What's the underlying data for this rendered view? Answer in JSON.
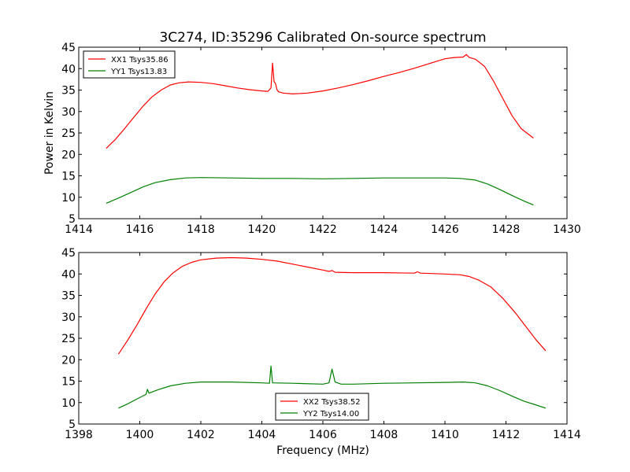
{
  "figure": {
    "title": "3C274, ID:35296 Calibrated On-source spectrum",
    "ylabel": "Power in Kelvin",
    "xlabel": "Frequency (MHz)"
  },
  "chart_data": [
    {
      "type": "line",
      "title": "3C274, ID:35296 Calibrated On-source spectrum",
      "ylabel": "Power in Kelvin",
      "xlabel": "",
      "xlim": [
        1414,
        1430
      ],
      "ylim": [
        5,
        45
      ],
      "xticks": [
        "1414",
        "1416",
        "1418",
        "1420",
        "1422",
        "1424",
        "1426",
        "1428",
        "1430"
      ],
      "yticks": [
        "5",
        "10",
        "15",
        "20",
        "25",
        "30",
        "35",
        "40",
        "45"
      ],
      "legend_position": "upper-left",
      "series": [
        {
          "name": "XX1 Tsys35.86",
          "color": "#ff0000",
          "x": [
            1414.9,
            1415.2,
            1415.5,
            1415.8,
            1416.1,
            1416.4,
            1416.7,
            1417.0,
            1417.3,
            1417.6,
            1418.0,
            1418.4,
            1418.8,
            1419.2,
            1419.6,
            1420.0,
            1420.2,
            1420.3,
            1420.35,
            1420.4,
            1420.45,
            1420.5,
            1420.55,
            1420.7,
            1421.0,
            1421.5,
            1422.0,
            1422.5,
            1423.0,
            1423.5,
            1424.0,
            1424.5,
            1425.0,
            1425.5,
            1426.0,
            1426.3,
            1426.6,
            1426.7,
            1426.8,
            1427.0,
            1427.3,
            1427.6,
            1427.9,
            1428.2,
            1428.5,
            1428.9
          ],
          "y": [
            21.4,
            23.5,
            26.0,
            28.6,
            31.2,
            33.4,
            35.0,
            36.2,
            36.7,
            36.9,
            36.8,
            36.5,
            36.0,
            35.5,
            35.1,
            34.8,
            34.7,
            35.5,
            41.3,
            37.0,
            36.5,
            35.0,
            34.6,
            34.3,
            34.1,
            34.3,
            34.8,
            35.5,
            36.3,
            37.2,
            38.2,
            39.1,
            40.1,
            41.2,
            42.3,
            42.6,
            42.7,
            43.3,
            42.6,
            42.2,
            40.5,
            37.0,
            33.0,
            29.0,
            26.0,
            23.8
          ]
        },
        {
          "name": "YY1 Tsys13.83",
          "color": "#008000",
          "x": [
            1414.9,
            1415.3,
            1415.7,
            1416.1,
            1416.5,
            1417.0,
            1417.5,
            1418.0,
            1419.0,
            1420.0,
            1421.0,
            1422.0,
            1423.0,
            1424.0,
            1425.0,
            1426.0,
            1426.5,
            1427.0,
            1427.4,
            1427.8,
            1428.2,
            1428.6,
            1428.9
          ],
          "y": [
            8.6,
            9.8,
            11.1,
            12.4,
            13.4,
            14.1,
            14.5,
            14.6,
            14.5,
            14.4,
            14.4,
            14.3,
            14.4,
            14.5,
            14.5,
            14.5,
            14.4,
            14.0,
            13.1,
            11.8,
            10.4,
            9.1,
            8.2
          ]
        }
      ]
    },
    {
      "type": "line",
      "title": "",
      "ylabel": "",
      "xlabel": "Frequency (MHz)",
      "xlim": [
        1398,
        1414
      ],
      "ylim": [
        5,
        45
      ],
      "xticks": [
        "1398",
        "1400",
        "1402",
        "1404",
        "1406",
        "1408",
        "1410",
        "1412",
        "1414"
      ],
      "yticks": [
        "5",
        "10",
        "15",
        "20",
        "25",
        "30",
        "35",
        "40",
        "45"
      ],
      "legend_position": "lower-center",
      "series": [
        {
          "name": "XX2 Tsys38.52",
          "color": "#ff0000",
          "x": [
            1399.3,
            1399.6,
            1399.9,
            1400.2,
            1400.5,
            1400.8,
            1401.1,
            1401.4,
            1401.7,
            1402.0,
            1402.5,
            1403.0,
            1403.5,
            1404.0,
            1404.5,
            1405.0,
            1405.5,
            1406.0,
            1406.2,
            1406.3,
            1406.4,
            1407.0,
            1408.0,
            1409.0,
            1409.1,
            1409.2,
            1410.0,
            1410.5,
            1410.8,
            1411.1,
            1411.5,
            1411.9,
            1412.3,
            1412.7,
            1413.0,
            1413.3
          ],
          "y": [
            21.3,
            24.5,
            28.0,
            31.8,
            35.3,
            38.2,
            40.3,
            41.8,
            42.7,
            43.3,
            43.7,
            43.8,
            43.7,
            43.4,
            43.0,
            42.3,
            41.6,
            40.9,
            40.6,
            40.8,
            40.4,
            40.3,
            40.3,
            40.2,
            40.5,
            40.2,
            40.0,
            39.8,
            39.4,
            38.6,
            37.0,
            34.3,
            31.0,
            27.3,
            24.5,
            22.1
          ]
        },
        {
          "name": "YY2 Tsys14.00",
          "color": "#008000",
          "x": [
            1399.3,
            1399.6,
            1399.9,
            1400.2,
            1400.25,
            1400.3,
            1400.6,
            1401.0,
            1401.5,
            1402.0,
            1403.0,
            1404.0,
            1404.25,
            1404.3,
            1404.35,
            1405.0,
            1406.0,
            1406.2,
            1406.3,
            1406.4,
            1406.6,
            1407.0,
            1408.0,
            1409.0,
            1410.0,
            1410.6,
            1411.0,
            1411.4,
            1411.8,
            1412.2,
            1412.6,
            1413.0,
            1413.3
          ],
          "y": [
            8.7,
            9.7,
            10.8,
            11.9,
            13.1,
            12.2,
            13.0,
            13.9,
            14.5,
            14.8,
            14.8,
            14.6,
            14.5,
            18.5,
            14.6,
            14.5,
            14.3,
            14.6,
            17.8,
            14.8,
            14.3,
            14.3,
            14.5,
            14.6,
            14.7,
            14.8,
            14.6,
            13.9,
            12.8,
            11.5,
            10.3,
            9.4,
            8.7
          ]
        }
      ]
    }
  ]
}
